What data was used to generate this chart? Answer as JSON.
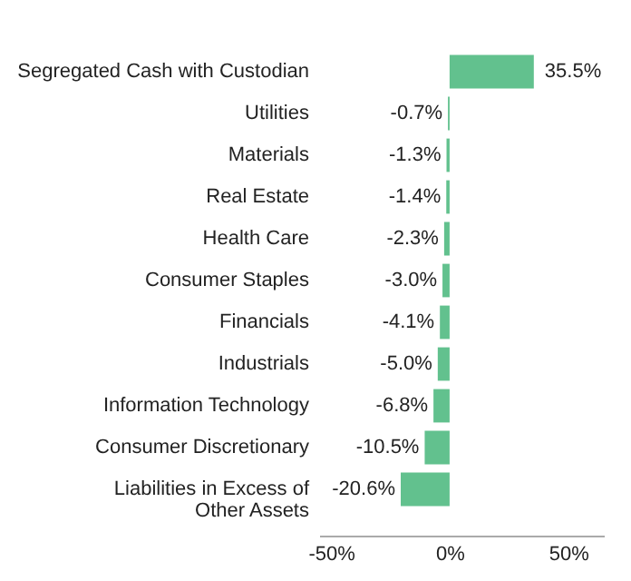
{
  "chart_data": {
    "type": "bar",
    "orientation": "horizontal",
    "categories": [
      "Segregated Cash with Custodian",
      "Utilities",
      "Materials",
      "Real Estate",
      "Health Care",
      "Consumer Staples",
      "Financials",
      "Industrials",
      "Information Technology",
      "Consumer Discretionary",
      "Liabilities in Excess of Other Assets"
    ],
    "values": [
      35.5,
      -0.7,
      -1.3,
      -1.4,
      -2.3,
      -3.0,
      -4.1,
      -5.0,
      -6.8,
      -10.5,
      -20.6
    ],
    "value_labels": [
      "35.5%",
      "-0.7%",
      "-1.3%",
      "-1.4%",
      "-2.3%",
      "-3.0%",
      "-4.1%",
      "-5.0%",
      "-6.8%",
      "-10.5%",
      "-20.6%"
    ],
    "color": "#62c18e",
    "xlim": [
      -55,
      65
    ],
    "xticks": [
      {
        "value": -50,
        "label": "-50%"
      },
      {
        "value": 0,
        "label": "0%"
      },
      {
        "value": 50,
        "label": "50%"
      }
    ],
    "grid": false
  }
}
